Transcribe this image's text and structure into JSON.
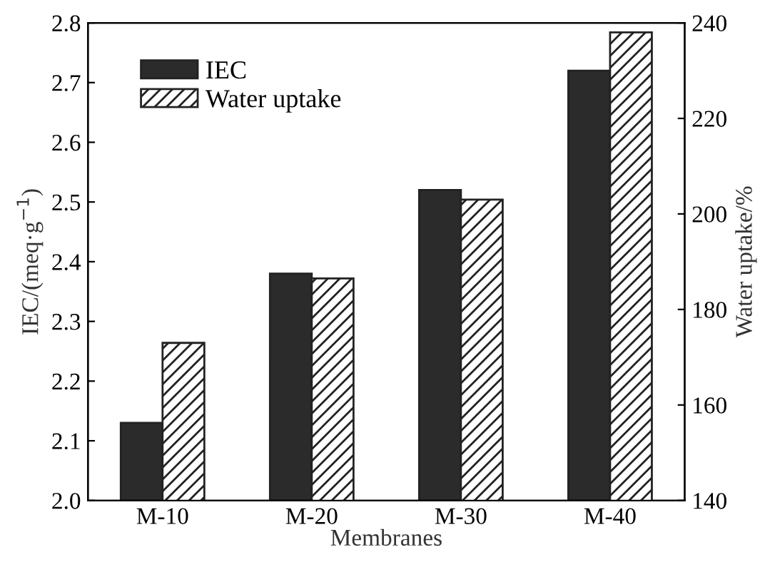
{
  "chart_data": {
    "type": "bar",
    "xlabel": "Membranes",
    "ylabel": "IEC/(meq·g$^{−1}$)",
    "y2label": "Water uptake/%",
    "categories": [
      "M-10",
      "M-20",
      "M-30",
      "M-40"
    ],
    "series": [
      {
        "name": "IEC",
        "color": "#2b2b2b",
        "values": [
          2.13,
          2.38,
          2.52,
          2.72
        ]
      },
      {
        "name": "Water uptake",
        "color": "#222222",
        "axis": "y2",
        "values": [
          173,
          186.5,
          203,
          238
        ]
      }
    ],
    "ylim": [
      2.0,
      2.8
    ],
    "yticks": [
      {
        "value": 2.0,
        "label": "2.0"
      },
      2.1,
      2.2,
      2.3,
      2.4,
      2.5,
      2.6,
      2.7,
      2.8
    ],
    "y2lim": [
      140,
      240
    ],
    "y2ticks": [
      140,
      160,
      180,
      200,
      220,
      240
    ],
    "legend": "top left",
    "grid": false
  }
}
